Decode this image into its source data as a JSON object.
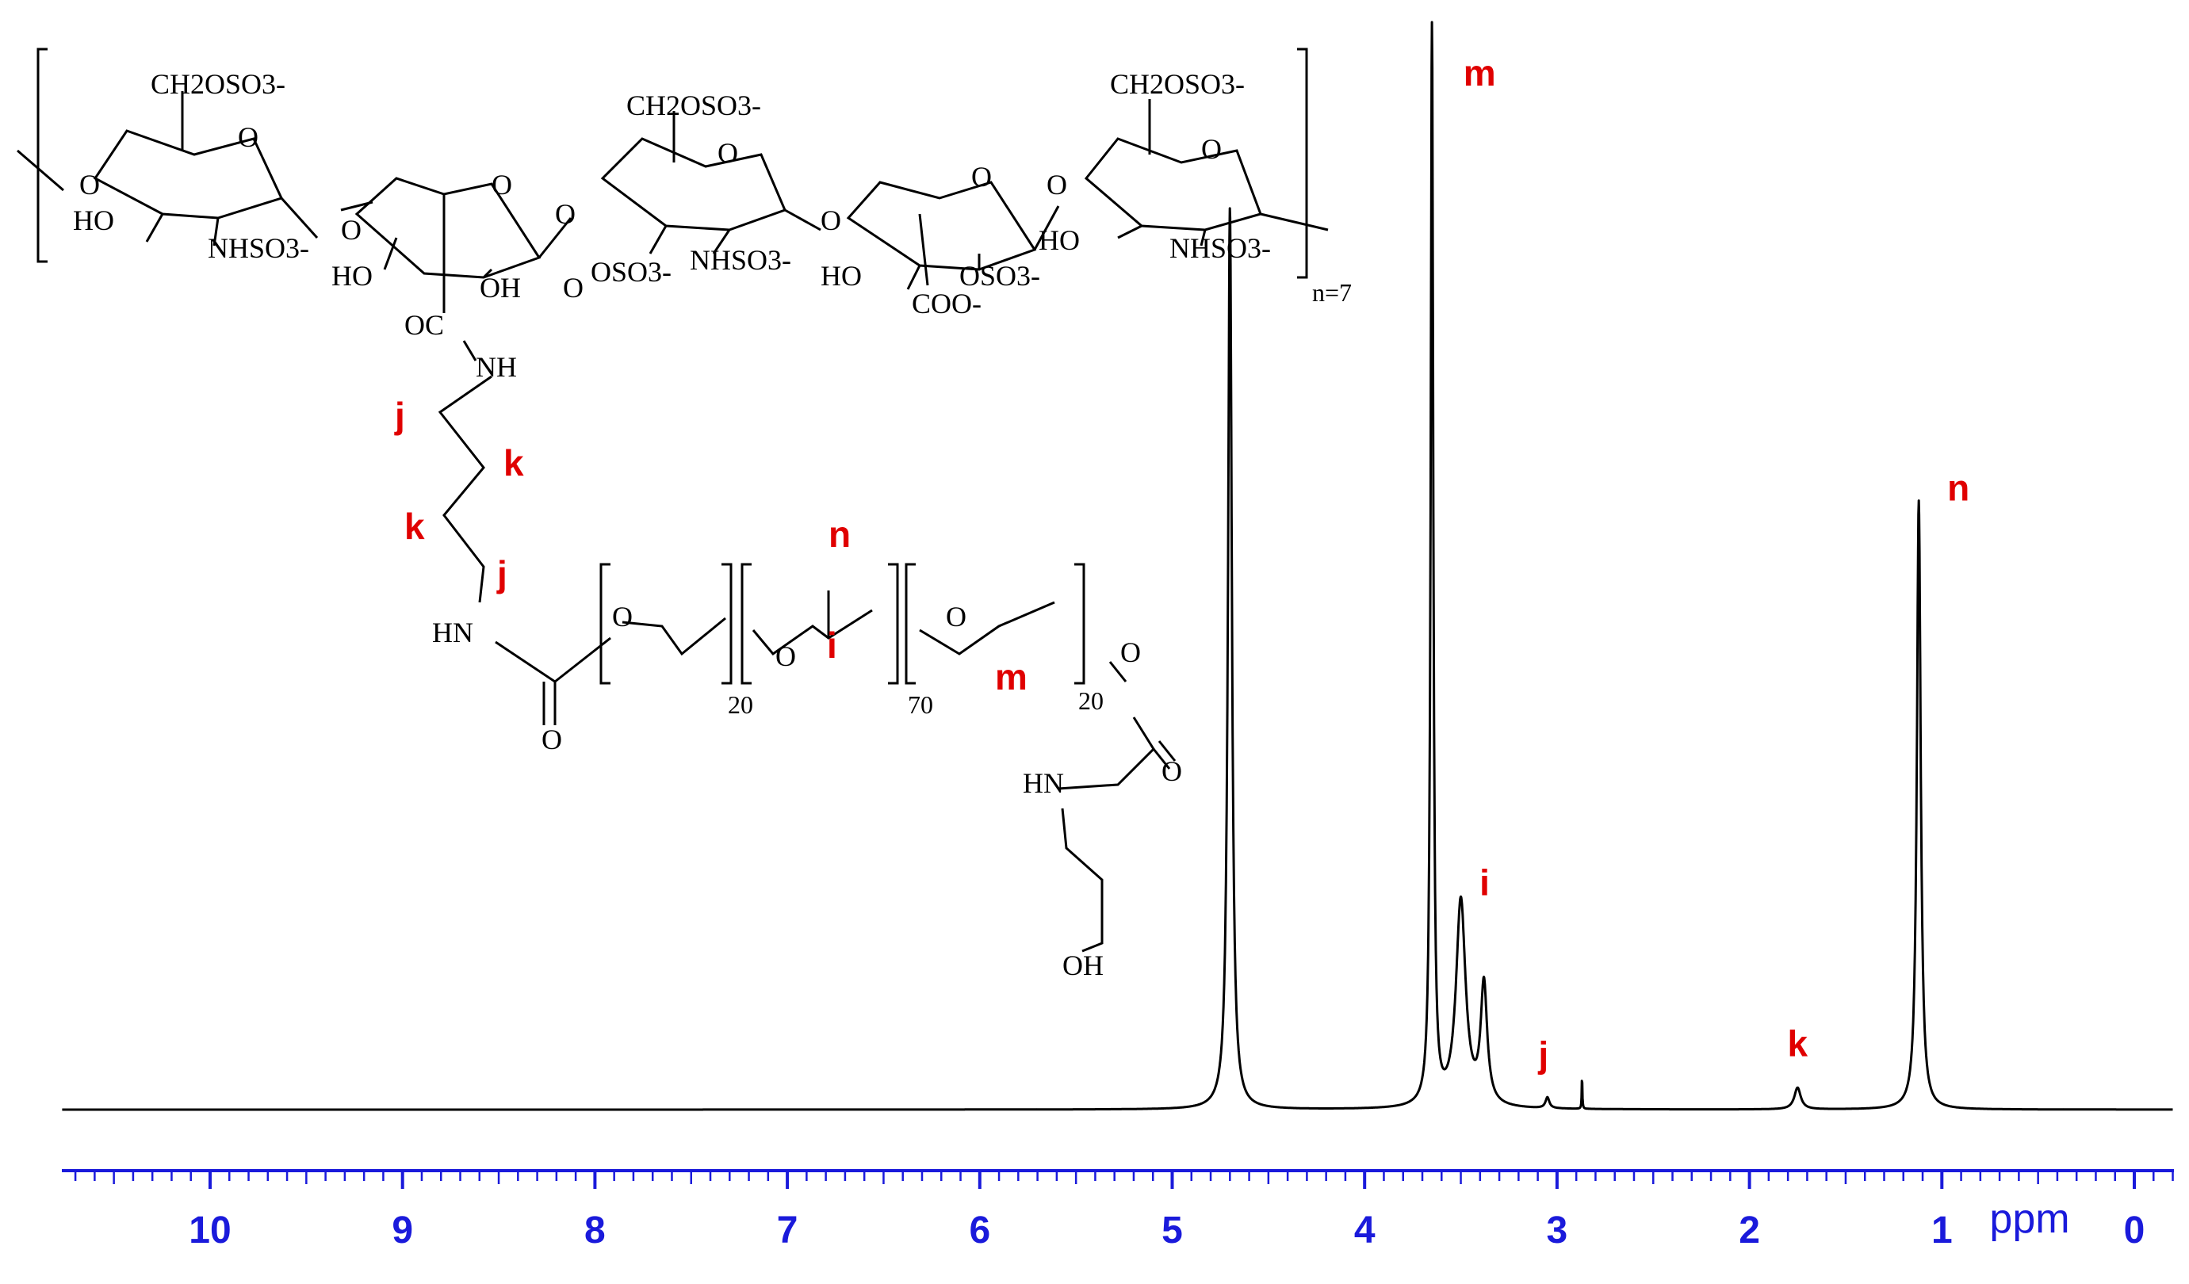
{
  "chart_data": {
    "type": "line",
    "title": "",
    "xlabel": "ppm",
    "ylabel": "",
    "xlim": [
      10.8,
      -0.2
    ],
    "x_reversed": true,
    "ticks": [
      "10",
      "9",
      "8",
      "7",
      "6",
      "5",
      "4",
      "3",
      "2",
      "1",
      "0"
    ],
    "tick_values": [
      10,
      9,
      8,
      7,
      6,
      5,
      4,
      3,
      2,
      1,
      0
    ],
    "grid": false,
    "peaks": [
      {
        "ppm": 4.7,
        "intensity": 0.83,
        "label": ""
      },
      {
        "ppm": 3.65,
        "intensity": 1.0,
        "label": "m"
      },
      {
        "ppm": 3.5,
        "intensity": 0.19,
        "label": "i"
      },
      {
        "ppm": 3.38,
        "intensity": 0.11,
        "label": ""
      },
      {
        "ppm": 3.05,
        "intensity": 0.01,
        "label": "j"
      },
      {
        "ppm": 2.87,
        "intensity": 0.03,
        "label": ""
      },
      {
        "ppm": 1.75,
        "intensity": 0.02,
        "label": "k"
      },
      {
        "ppm": 1.12,
        "intensity": 0.56,
        "label": "n"
      }
    ],
    "colors": {
      "spectrum": "#000000",
      "axis": "#1a1adb",
      "peak_label": "#e00000"
    }
  },
  "structure": {
    "top_labels": {
      "ch2oso3_1": "CH2OSO3-",
      "ch2oso3_2": "CH2OSO3-",
      "ch2oso3_3": "CH2OSO3-",
      "ho_1": "HO",
      "ho_2": "HO",
      "ho_3": "HO",
      "ho_4": "HO",
      "oh_1": "OH",
      "nhso3_1": "NHSO3-",
      "nhso3_2": "NHSO3-",
      "nhso3_3": "NHSO3-",
      "oso3_1": "OSO3-",
      "oso3_2": "OSO3-",
      "coo": "COO-",
      "o_ring_1": "O",
      "o_ring_2": "O",
      "o_ring_3": "O",
      "o_ring_4": "O",
      "o_ring_5": "O",
      "o_link_1": "O",
      "o_link_2": "O",
      "o_link_3": "O",
      "o_link_4": "O",
      "o_link_5": "O",
      "o_link_6": "O",
      "repeat": "n=7"
    },
    "chain_labels": {
      "oc": "OC",
      "nh": "NH",
      "hn": "HN",
      "o_carbonyl": "O",
      "o1": "O",
      "o2": "O",
      "o3": "O",
      "o4": "O",
      "sub1": "20",
      "sub2": "70",
      "sub3": "20",
      "hn2": "HN",
      "o_carbonyl2": "O",
      "oh": "OH"
    },
    "assignments": {
      "j1": "j",
      "k1": "k",
      "k2": "k",
      "j2": "j",
      "n": "n",
      "i": "i",
      "m": "m"
    }
  }
}
